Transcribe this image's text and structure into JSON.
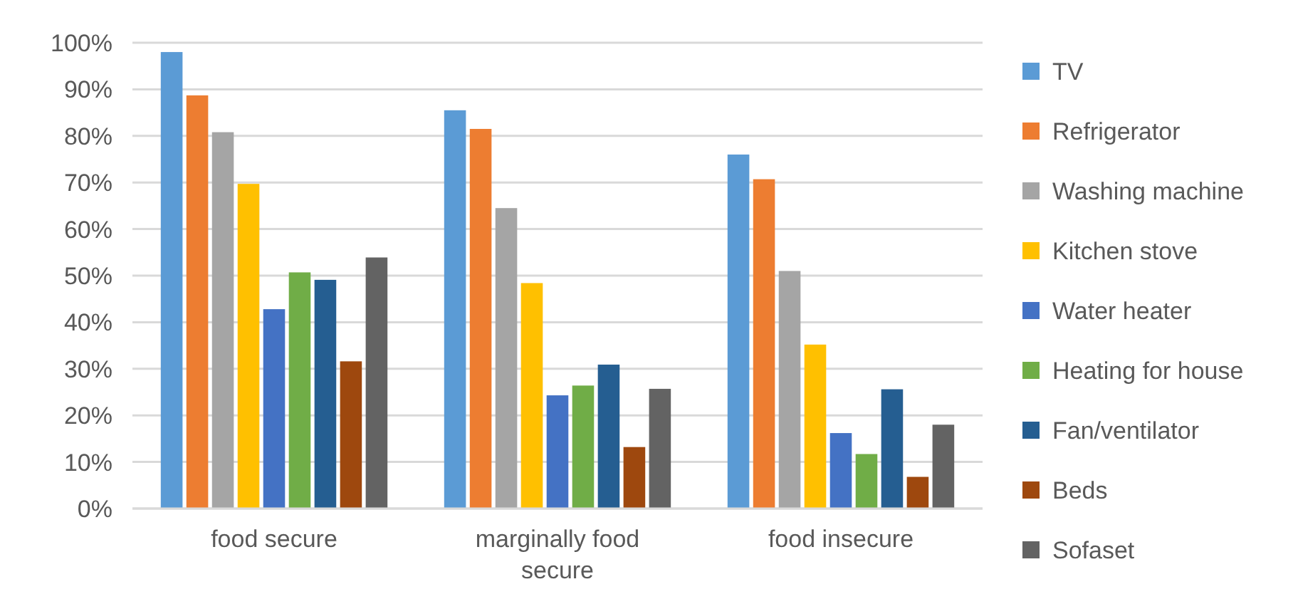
{
  "chart_data": {
    "type": "bar",
    "categories": [
      "food secure",
      "marginally food secure",
      "food insecure"
    ],
    "series": [
      {
        "name": "TV",
        "color": "#5b9bd5",
        "values": [
          98,
          85.5,
          76
        ]
      },
      {
        "name": "Refrigerator",
        "color": "#ed7d31",
        "values": [
          88.7,
          81.5,
          70.7
        ]
      },
      {
        "name": "Washing machine",
        "color": "#a5a5a5",
        "values": [
          80.8,
          64.5,
          51
        ]
      },
      {
        "name": "Kitchen stove",
        "color": "#ffc000",
        "values": [
          69.7,
          48.4,
          35.2
        ]
      },
      {
        "name": "Water heater",
        "color": "#4472c4",
        "values": [
          42.8,
          24.3,
          16.2
        ]
      },
      {
        "name": "Heating for house",
        "color": "#70ad47",
        "values": [
          50.7,
          26.4,
          11.7
        ]
      },
      {
        "name": "Fan/ventilator",
        "color": "#255e91",
        "values": [
          49.1,
          30.9,
          25.6
        ]
      },
      {
        "name": "Beds",
        "color": "#9e480e",
        "values": [
          31.6,
          13.2,
          6.8
        ]
      },
      {
        "name": "Sofaset",
        "color": "#636363",
        "values": [
          53.9,
          25.7,
          18
        ]
      }
    ],
    "ylim": [
      0,
      100
    ],
    "yticks": [
      {
        "value": 0,
        "label": "0%"
      },
      {
        "value": 10,
        "label": "10%"
      },
      {
        "value": 20,
        "label": "20%"
      },
      {
        "value": 30,
        "label": "30%"
      },
      {
        "value": 40,
        "label": "40%"
      },
      {
        "value": 50,
        "label": "50%"
      },
      {
        "value": 60,
        "label": "60%"
      },
      {
        "value": 70,
        "label": "70%"
      },
      {
        "value": 80,
        "label": "80%"
      },
      {
        "value": 90,
        "label": "90%"
      },
      {
        "value": 100,
        "label": "100%"
      }
    ],
    "grid": "y",
    "legend": "right"
  }
}
